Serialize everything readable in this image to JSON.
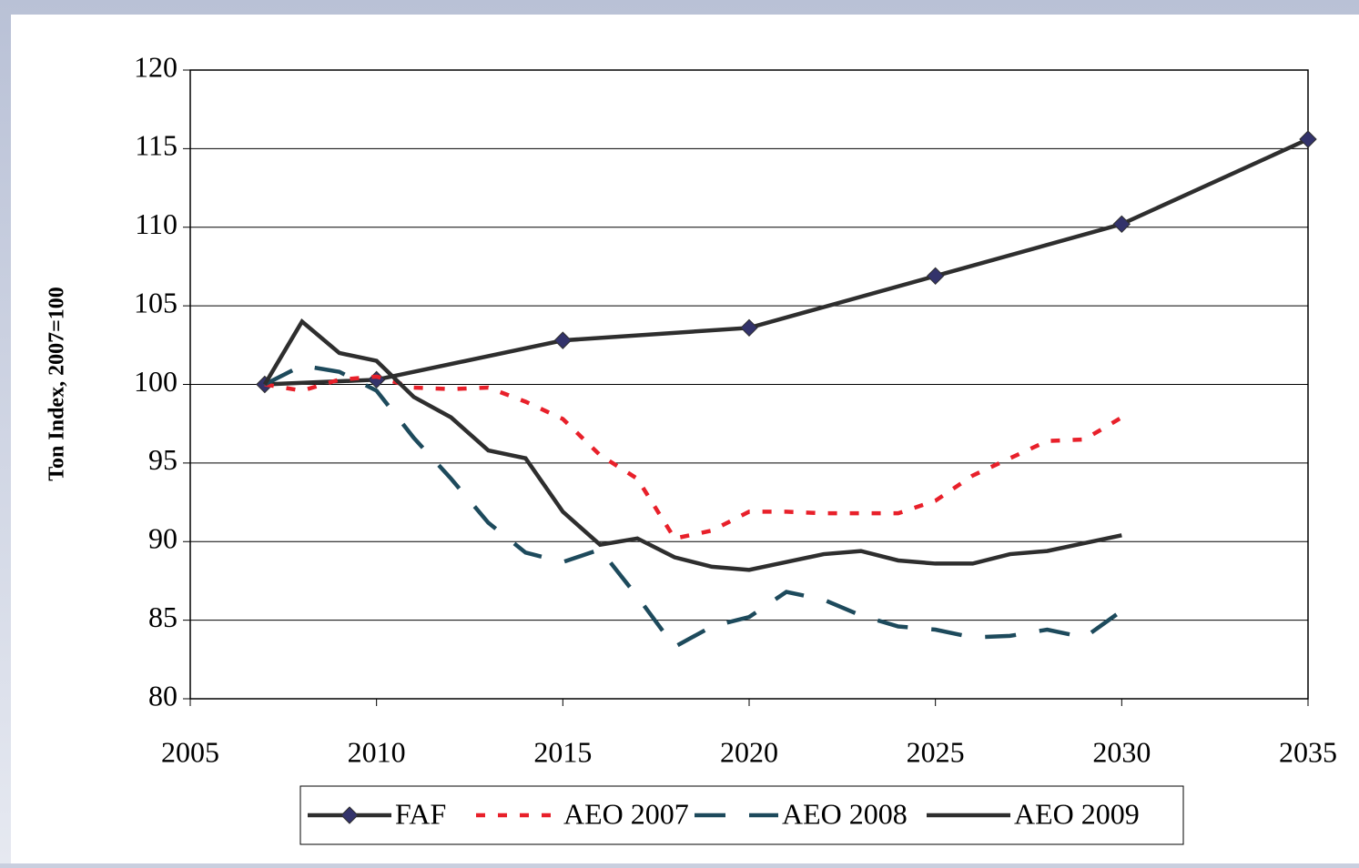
{
  "chart_data": {
    "type": "line",
    "ylabel": "Ton Index, 2007=100",
    "xlim": [
      2005,
      2035
    ],
    "xticks": [
      2005,
      2010,
      2015,
      2020,
      2025,
      2030,
      2035
    ],
    "ylim": [
      80,
      120
    ],
    "yticks": [
      80,
      85,
      90,
      95,
      100,
      105,
      110,
      115,
      120
    ],
    "grid": true,
    "legend": "bottom",
    "series": [
      {
        "name": "FAF",
        "color": "#2e2e2e",
        "marker": "diamond",
        "marker_color": "#33336b",
        "dash": "solid",
        "x": [
          2007,
          2010,
          2015,
          2020,
          2025,
          2030,
          2035
        ],
        "values": [
          100,
          100.3,
          102.8,
          103.6,
          106.9,
          110.2,
          115.6
        ]
      },
      {
        "name": "AEO 2007",
        "color": "#e8202a",
        "dash": "dotted",
        "x": [
          2007,
          2008,
          2009,
          2010,
          2011,
          2012,
          2013,
          2014,
          2015,
          2016,
          2017,
          2018,
          2019,
          2020,
          2021,
          2022,
          2023,
          2024,
          2025,
          2026,
          2027,
          2028,
          2029,
          2030
        ],
        "values": [
          100,
          99.6,
          100.3,
          100.5,
          99.8,
          99.7,
          99.8,
          98.9,
          97.8,
          95.5,
          94,
          90.2,
          90.7,
          91.9,
          91.9,
          91.8,
          91.8,
          91.8,
          92.6,
          94.2,
          95.3,
          96.4,
          96.5,
          97.9
        ]
      },
      {
        "name": "AEO 2008",
        "color": "#1d4a5c",
        "dash": "dashed",
        "x": [
          2007,
          2008,
          2009,
          2010,
          2011,
          2012,
          2013,
          2014,
          2015,
          2016,
          2017,
          2018,
          2019,
          2020,
          2021,
          2022,
          2023,
          2024,
          2025,
          2026,
          2027,
          2028,
          2029,
          2030
        ],
        "values": [
          100,
          101.2,
          100.8,
          99.6,
          96.6,
          94,
          91.2,
          89.3,
          88.7,
          89.5,
          86.5,
          83.3,
          84.6,
          85.2,
          86.8,
          86.3,
          85.3,
          84.6,
          84.4,
          83.9,
          84,
          84.4,
          83.9,
          85.6
        ]
      },
      {
        "name": "AEO 2009",
        "color": "#2e2e2e",
        "dash": "solid",
        "x": [
          2007,
          2008,
          2009,
          2010,
          2011,
          2012,
          2013,
          2014,
          2015,
          2016,
          2017,
          2018,
          2019,
          2020,
          2021,
          2022,
          2023,
          2024,
          2025,
          2026,
          2027,
          2028,
          2029,
          2030
        ],
        "values": [
          100,
          104,
          102,
          101.5,
          99.2,
          97.9,
          95.8,
          95.3,
          91.9,
          89.8,
          90.2,
          89,
          88.4,
          88.2,
          88.7,
          89.2,
          89.4,
          88.8,
          88.6,
          88.6,
          89.2,
          89.4,
          89.9,
          90.4
        ]
      }
    ]
  }
}
